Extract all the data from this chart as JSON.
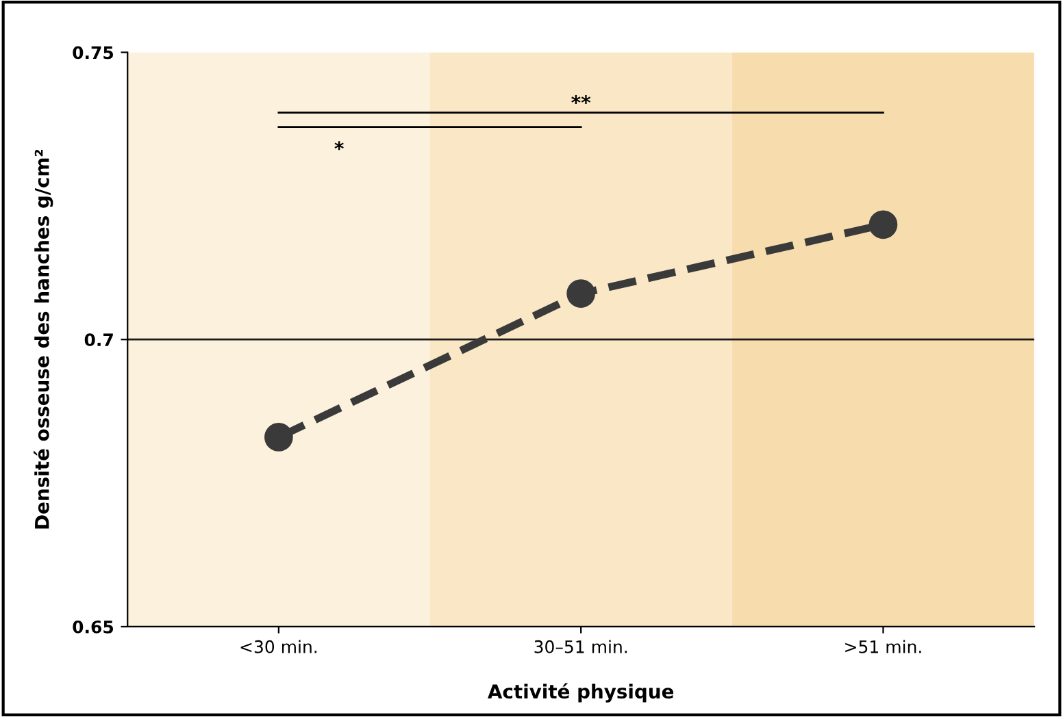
{
  "chart_data": {
    "type": "line",
    "categories": [
      "<30 min.",
      "30–51 min.",
      ">51 min."
    ],
    "series": [
      {
        "color": "#3a3a3a",
        "values": [
          0.683,
          0.708,
          0.72
        ]
      }
    ],
    "ylim": [
      0.65,
      0.75
    ],
    "yticks": [
      0.65,
      0.7,
      0.75
    ],
    "xlabel": "Activité physique",
    "ylabel": "Densité osseuse des hanches g/cm²",
    "marker": "circle",
    "line_style": "dashed",
    "grid": false,
    "legend": false,
    "ref_lines": [
      {
        "axis": "y",
        "value": 0.7,
        "color": "#1a1a1a"
      }
    ],
    "bands": [
      {
        "axis": "x",
        "from": "<30 min.",
        "to": "<30 min.",
        "color": "#fbf1dc"
      },
      {
        "axis": "x",
        "from": "30–51 min.",
        "to": "30–51 min.",
        "color": "#f9e7c6"
      },
      {
        "axis": "x",
        "from": ">51 min.",
        "to": ">51 min.",
        "color": "#f7ddae"
      }
    ],
    "annotations": [
      "*",
      "**"
    ]
  }
}
